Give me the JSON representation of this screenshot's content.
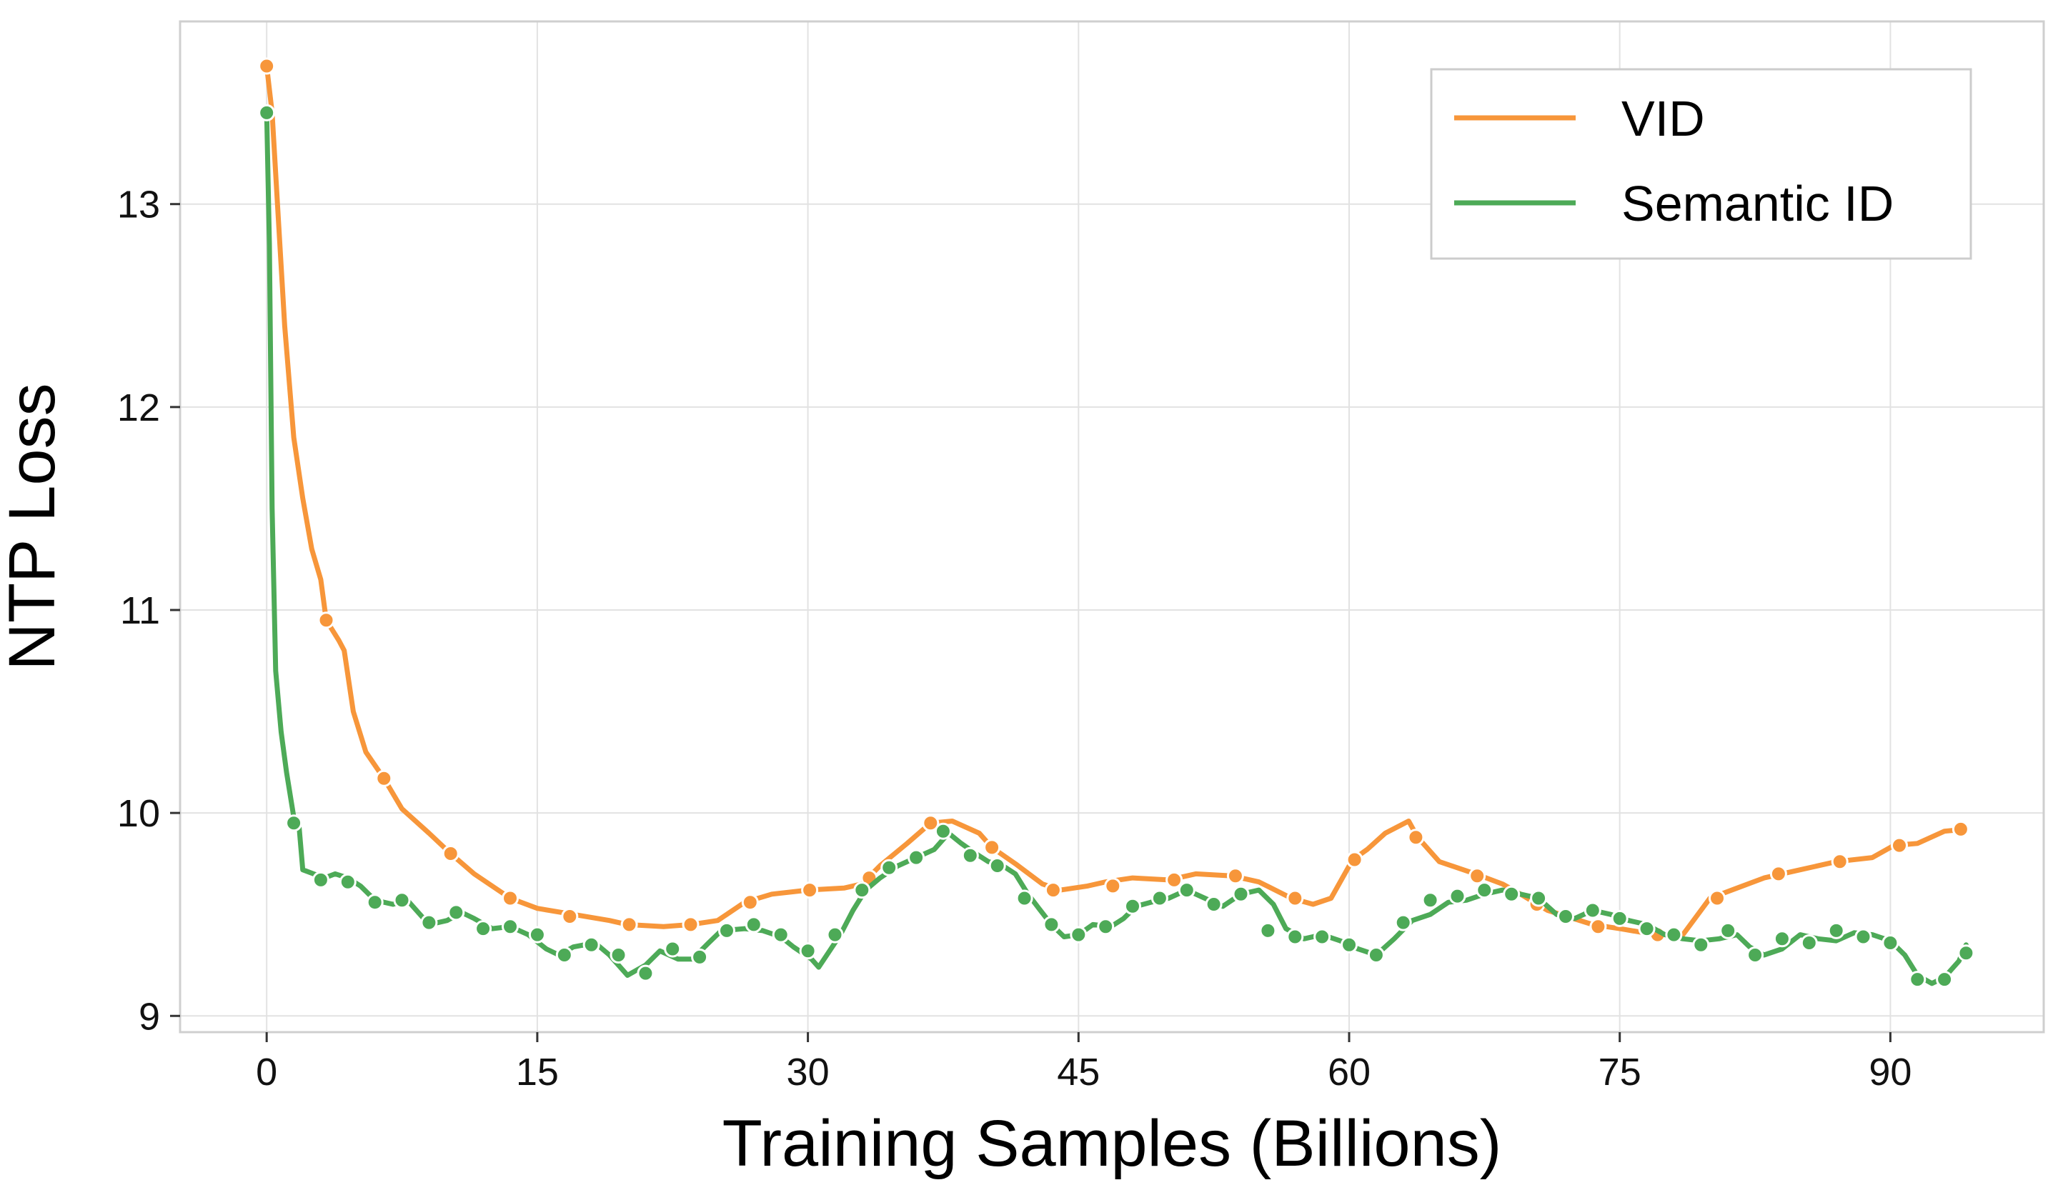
{
  "chart_data": {
    "type": "line",
    "title": "",
    "xlabel": "Training Samples (Billions)",
    "ylabel": "NTP Loss",
    "xlim": [
      -4.8,
      98.5
    ],
    "ylim": [
      8.92,
      13.9
    ],
    "xticks": [
      0,
      15,
      30,
      45,
      60,
      75,
      90
    ],
    "xtick_labels": [
      "0",
      "15",
      "30",
      "45",
      "60",
      "75",
      "90"
    ],
    "yticks": [
      9,
      10,
      11,
      12,
      13
    ],
    "ytick_labels": [
      "9",
      "10",
      "11",
      "12",
      "13"
    ],
    "grid": true,
    "legend_position": "top-right",
    "series": [
      {
        "name": "VID",
        "color": "#F7963A",
        "line": [
          [
            0,
            13.68
          ],
          [
            0.3,
            13.45
          ],
          [
            0.6,
            13.0
          ],
          [
            1.0,
            12.4
          ],
          [
            1.5,
            11.85
          ],
          [
            2.0,
            11.55
          ],
          [
            2.5,
            11.3
          ],
          [
            3.0,
            11.15
          ],
          [
            3.3,
            10.95
          ],
          [
            4.0,
            10.85
          ],
          [
            4.3,
            10.8
          ],
          [
            4.8,
            10.5
          ],
          [
            5.5,
            10.3
          ],
          [
            6.5,
            10.17
          ],
          [
            7.5,
            10.02
          ],
          [
            9.0,
            9.9
          ],
          [
            10.2,
            9.8
          ],
          [
            11.5,
            9.7
          ],
          [
            13.5,
            9.58
          ],
          [
            15.0,
            9.53
          ],
          [
            17.0,
            9.5
          ],
          [
            19.0,
            9.47
          ],
          [
            20.0,
            9.45
          ],
          [
            22.0,
            9.44
          ],
          [
            23.5,
            9.45
          ],
          [
            25.0,
            9.47
          ],
          [
            26.5,
            9.56
          ],
          [
            28.0,
            9.6
          ],
          [
            30.0,
            9.62
          ],
          [
            32.0,
            9.63
          ],
          [
            33.0,
            9.65
          ],
          [
            34.0,
            9.74
          ],
          [
            35.5,
            9.85
          ],
          [
            36.8,
            9.95
          ],
          [
            38.0,
            9.96
          ],
          [
            39.5,
            9.9
          ],
          [
            40.2,
            9.83
          ],
          [
            41.5,
            9.75
          ],
          [
            43.0,
            9.65
          ],
          [
            44.0,
            9.62
          ],
          [
            45.5,
            9.64
          ],
          [
            46.5,
            9.66
          ],
          [
            48.0,
            9.68
          ],
          [
            50.0,
            9.67
          ],
          [
            51.5,
            9.7
          ],
          [
            53.5,
            9.69
          ],
          [
            55.0,
            9.66
          ],
          [
            56.8,
            9.58
          ],
          [
            58.0,
            9.55
          ],
          [
            59.0,
            9.58
          ],
          [
            60.2,
            9.77
          ],
          [
            61.0,
            9.82
          ],
          [
            62.0,
            9.9
          ],
          [
            63.3,
            9.96
          ],
          [
            63.8,
            9.88
          ],
          [
            65.0,
            9.76
          ],
          [
            67.0,
            9.7
          ],
          [
            68.5,
            9.65
          ],
          [
            69.5,
            9.6
          ],
          [
            71.0,
            9.52
          ],
          [
            73.5,
            9.45
          ],
          [
            75.0,
            9.43
          ],
          [
            77.0,
            9.4
          ],
          [
            78.5,
            9.4
          ],
          [
            80.0,
            9.58
          ],
          [
            81.5,
            9.63
          ],
          [
            83.0,
            9.68
          ],
          [
            85.0,
            9.72
          ],
          [
            87.0,
            9.76
          ],
          [
            89.0,
            9.78
          ],
          [
            90.2,
            9.84
          ],
          [
            91.5,
            9.85
          ],
          [
            93.0,
            9.91
          ],
          [
            94.2,
            9.92
          ]
        ],
        "markers": [
          [
            0,
            13.68
          ],
          [
            3.3,
            10.95
          ],
          [
            6.5,
            10.17
          ],
          [
            10.2,
            9.8
          ],
          [
            13.5,
            9.58
          ],
          [
            16.8,
            9.49
          ],
          [
            20.1,
            9.45
          ],
          [
            23.5,
            9.45
          ],
          [
            26.8,
            9.56
          ],
          [
            30.1,
            9.62
          ],
          [
            33.4,
            9.68
          ],
          [
            36.8,
            9.95
          ],
          [
            40.2,
            9.83
          ],
          [
            43.6,
            9.62
          ],
          [
            46.9,
            9.64
          ],
          [
            50.3,
            9.67
          ],
          [
            53.7,
            9.69
          ],
          [
            57.0,
            9.58
          ],
          [
            60.3,
            9.77
          ],
          [
            63.7,
            9.88
          ],
          [
            67.1,
            9.69
          ],
          [
            70.4,
            9.55
          ],
          [
            73.8,
            9.44
          ],
          [
            77.1,
            9.4
          ],
          [
            80.4,
            9.58
          ],
          [
            83.8,
            9.7
          ],
          [
            87.2,
            9.76
          ],
          [
            90.5,
            9.84
          ],
          [
            93.9,
            9.92
          ]
        ]
      },
      {
        "name": "Semantic ID",
        "color": "#4DAA57",
        "line": [
          [
            0,
            13.45
          ],
          [
            0.15,
            12.8
          ],
          [
            0.3,
            11.5
          ],
          [
            0.5,
            10.7
          ],
          [
            0.8,
            10.4
          ],
          [
            1.1,
            10.2
          ],
          [
            1.5,
            9.98
          ],
          [
            1.8,
            9.93
          ],
          [
            2.0,
            9.72
          ],
          [
            2.6,
            9.7
          ],
          [
            3.2,
            9.68
          ],
          [
            3.8,
            9.7
          ],
          [
            4.5,
            9.68
          ],
          [
            5.2,
            9.64
          ],
          [
            6.0,
            9.57
          ],
          [
            7.0,
            9.55
          ],
          [
            7.8,
            9.57
          ],
          [
            8.5,
            9.5
          ],
          [
            9.0,
            9.45
          ],
          [
            10.0,
            9.47
          ],
          [
            10.8,
            9.51
          ],
          [
            11.5,
            9.48
          ],
          [
            12.5,
            9.43
          ],
          [
            13.5,
            9.44
          ],
          [
            14.5,
            9.4
          ],
          [
            15.5,
            9.33
          ],
          [
            16.2,
            9.3
          ],
          [
            17.0,
            9.34
          ],
          [
            18.2,
            9.36
          ],
          [
            19.0,
            9.3
          ],
          [
            20.0,
            9.2
          ],
          [
            21.0,
            9.25
          ],
          [
            21.8,
            9.32
          ],
          [
            22.8,
            9.28
          ],
          [
            23.6,
            9.28
          ],
          [
            24.5,
            9.36
          ],
          [
            25.2,
            9.42
          ],
          [
            26.5,
            9.43
          ],
          [
            27.5,
            9.42
          ],
          [
            28.5,
            9.39
          ],
          [
            29.2,
            9.34
          ],
          [
            30.2,
            9.28
          ],
          [
            30.6,
            9.24
          ],
          [
            31.2,
            9.32
          ],
          [
            31.8,
            9.4
          ],
          [
            32.5,
            9.52
          ],
          [
            33.2,
            9.62
          ],
          [
            34.0,
            9.68
          ],
          [
            35.0,
            9.74
          ],
          [
            36.0,
            9.78
          ],
          [
            37.0,
            9.82
          ],
          [
            37.8,
            9.9
          ],
          [
            38.5,
            9.85
          ],
          [
            39.3,
            9.8
          ],
          [
            40.0,
            9.76
          ],
          [
            40.8,
            9.74
          ],
          [
            41.5,
            9.7
          ],
          [
            42.2,
            9.6
          ],
          [
            42.8,
            9.53
          ],
          [
            43.5,
            9.45
          ],
          [
            44.2,
            9.39
          ],
          [
            45.0,
            9.4
          ],
          [
            45.8,
            9.45
          ],
          [
            46.8,
            9.44
          ],
          [
            47.5,
            9.48
          ],
          [
            48.2,
            9.54
          ],
          [
            49.0,
            9.56
          ],
          [
            50.0,
            9.58
          ],
          [
            51.0,
            9.62
          ],
          [
            52.0,
            9.58
          ],
          [
            53.0,
            9.54
          ],
          [
            54.0,
            9.6
          ],
          [
            55.0,
            9.62
          ],
          [
            55.8,
            9.55
          ],
          [
            56.5,
            9.43
          ],
          [
            57.5,
            9.38
          ],
          [
            58.5,
            9.4
          ],
          [
            59.5,
            9.37
          ],
          [
            60.5,
            9.33
          ],
          [
            61.5,
            9.3
          ],
          [
            62.5,
            9.38
          ],
          [
            63.5,
            9.47
          ],
          [
            64.5,
            9.5
          ],
          [
            65.5,
            9.56
          ],
          [
            66.5,
            9.57
          ],
          [
            67.5,
            9.6
          ],
          [
            68.5,
            9.62
          ],
          [
            69.5,
            9.6
          ],
          [
            70.5,
            9.58
          ],
          [
            71.5,
            9.5
          ],
          [
            72.5,
            9.48
          ],
          [
            73.5,
            9.52
          ],
          [
            74.5,
            9.5
          ],
          [
            75.5,
            9.47
          ],
          [
            76.5,
            9.45
          ],
          [
            77.5,
            9.4
          ],
          [
            78.5,
            9.38
          ],
          [
            79.5,
            9.37
          ],
          [
            80.5,
            9.38
          ],
          [
            81.5,
            9.4
          ],
          [
            82.2,
            9.34
          ],
          [
            83.0,
            9.3
          ],
          [
            84.0,
            9.33
          ],
          [
            85.0,
            9.4
          ],
          [
            86.0,
            9.38
          ],
          [
            87.0,
            9.37
          ],
          [
            88.0,
            9.41
          ],
          [
            89.0,
            9.4
          ],
          [
            90.0,
            9.37
          ],
          [
            90.8,
            9.3
          ],
          [
            91.5,
            9.2
          ],
          [
            92.3,
            9.16
          ],
          [
            93.0,
            9.19
          ],
          [
            93.8,
            9.27
          ],
          [
            94.2,
            9.35
          ]
        ],
        "markers": [
          [
            0,
            13.45
          ],
          [
            1.5,
            9.95
          ],
          [
            3.0,
            9.67
          ],
          [
            4.5,
            9.66
          ],
          [
            6.0,
            9.56
          ],
          [
            7.5,
            9.57
          ],
          [
            9.0,
            9.46
          ],
          [
            10.5,
            9.51
          ],
          [
            12.0,
            9.43
          ],
          [
            13.5,
            9.44
          ],
          [
            15.0,
            9.4
          ],
          [
            16.5,
            9.3
          ],
          [
            18.0,
            9.35
          ],
          [
            19.5,
            9.3
          ],
          [
            21.0,
            9.21
          ],
          [
            22.5,
            9.33
          ],
          [
            24.0,
            9.29
          ],
          [
            25.5,
            9.42
          ],
          [
            27.0,
            9.45
          ],
          [
            28.5,
            9.4
          ],
          [
            30.0,
            9.32
          ],
          [
            31.5,
            9.4
          ],
          [
            33.0,
            9.62
          ],
          [
            34.5,
            9.73
          ],
          [
            36.0,
            9.78
          ],
          [
            37.5,
            9.91
          ],
          [
            39.0,
            9.79
          ],
          [
            40.5,
            9.74
          ],
          [
            42.0,
            9.58
          ],
          [
            43.5,
            9.45
          ],
          [
            45.0,
            9.4
          ],
          [
            46.5,
            9.44
          ],
          [
            48.0,
            9.54
          ],
          [
            49.5,
            9.58
          ],
          [
            51.0,
            9.62
          ],
          [
            52.5,
            9.55
          ],
          [
            54.0,
            9.6
          ],
          [
            55.5,
            9.42
          ],
          [
            57.0,
            9.39
          ],
          [
            58.5,
            9.39
          ],
          [
            60.0,
            9.35
          ],
          [
            61.5,
            9.3
          ],
          [
            63.0,
            9.46
          ],
          [
            64.5,
            9.57
          ],
          [
            66.0,
            9.59
          ],
          [
            67.5,
            9.62
          ],
          [
            69.0,
            9.6
          ],
          [
            70.5,
            9.58
          ],
          [
            72.0,
            9.49
          ],
          [
            73.5,
            9.52
          ],
          [
            75.0,
            9.48
          ],
          [
            76.5,
            9.43
          ],
          [
            78.0,
            9.4
          ],
          [
            79.5,
            9.35
          ],
          [
            81.0,
            9.42
          ],
          [
            82.5,
            9.3
          ],
          [
            84.0,
            9.38
          ],
          [
            85.5,
            9.36
          ],
          [
            87.0,
            9.42
          ],
          [
            88.5,
            9.39
          ],
          [
            90.0,
            9.36
          ],
          [
            91.5,
            9.18
          ],
          [
            93.0,
            9.18
          ],
          [
            94.2,
            9.31
          ]
        ]
      }
    ]
  }
}
